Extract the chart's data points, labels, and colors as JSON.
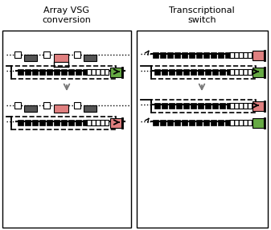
{
  "title_left": "Array VSG\nconversion",
  "title_right": "Transcriptional\nswitch",
  "bg_color": "#ffffff",
  "border_color": "#000000",
  "colors": {
    "dark_gray": "#555555",
    "medium_gray": "#888888",
    "light_gray": "#cccccc",
    "pink": "#e08080",
    "green": "#66aa44",
    "black": "#000000",
    "white": "#ffffff",
    "arrow_gray": "#777777"
  }
}
